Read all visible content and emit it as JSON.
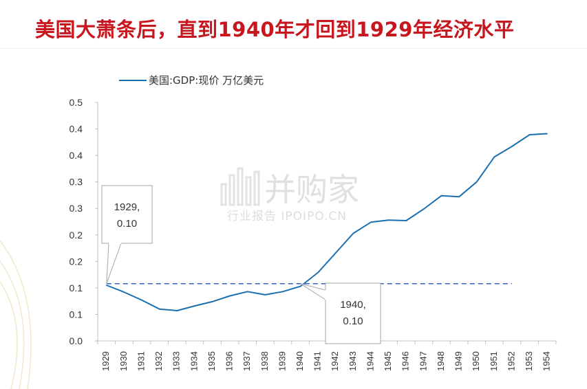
{
  "title": "美国大萧条后，直到1940年才回到1929年经济水平",
  "watermark": {
    "main": "并购家",
    "sub": "行业报告 IPOIPO.CN"
  },
  "colors": {
    "title": "#c8161e",
    "series": "#1a6fb0",
    "reference": "#2f5fc4"
  },
  "chart_data": {
    "type": "line",
    "legend": "top-left",
    "grid": false,
    "x": [
      "1929",
      "1930",
      "1931",
      "1932",
      "1933",
      "1934",
      "1935",
      "1936",
      "1937",
      "1938",
      "1939",
      "1940",
      "1941",
      "1942",
      "1943",
      "1944",
      "1945",
      "1946",
      "1947",
      "1948",
      "1949",
      "1950",
      "1951",
      "1952",
      "1953",
      "1954"
    ],
    "series": [
      {
        "name": "美国:GDP:现价 万亿美元",
        "values": [
          0.105,
          0.092,
          0.077,
          0.06,
          0.057,
          0.066,
          0.074,
          0.085,
          0.093,
          0.087,
          0.093,
          0.103,
          0.129,
          0.166,
          0.203,
          0.224,
          0.228,
          0.227,
          0.249,
          0.274,
          0.272,
          0.3,
          0.347,
          0.367,
          0.389,
          0.391
        ]
      }
    ],
    "reference_line": {
      "value": 0.108,
      "from": "1929",
      "to": "1952"
    },
    "ylim": [
      0.0,
      0.45
    ],
    "yticks": [
      0,
      0.05,
      0.1,
      0.15,
      0.2,
      0.25,
      0.3,
      0.35,
      0.4,
      0.45
    ],
    "ytick_labels": [
      "0.0",
      "0.1",
      "0.1",
      "0.2",
      "0.2",
      "0.3",
      "0.3",
      "0.4",
      "0.4",
      "0.5"
    ],
    "annotations": [
      {
        "label": "1929,\n0.10",
        "x": "1929"
      },
      {
        "label": "1940,\n0.10",
        "x": "1940"
      }
    ],
    "xlabel": "",
    "ylabel": ""
  }
}
